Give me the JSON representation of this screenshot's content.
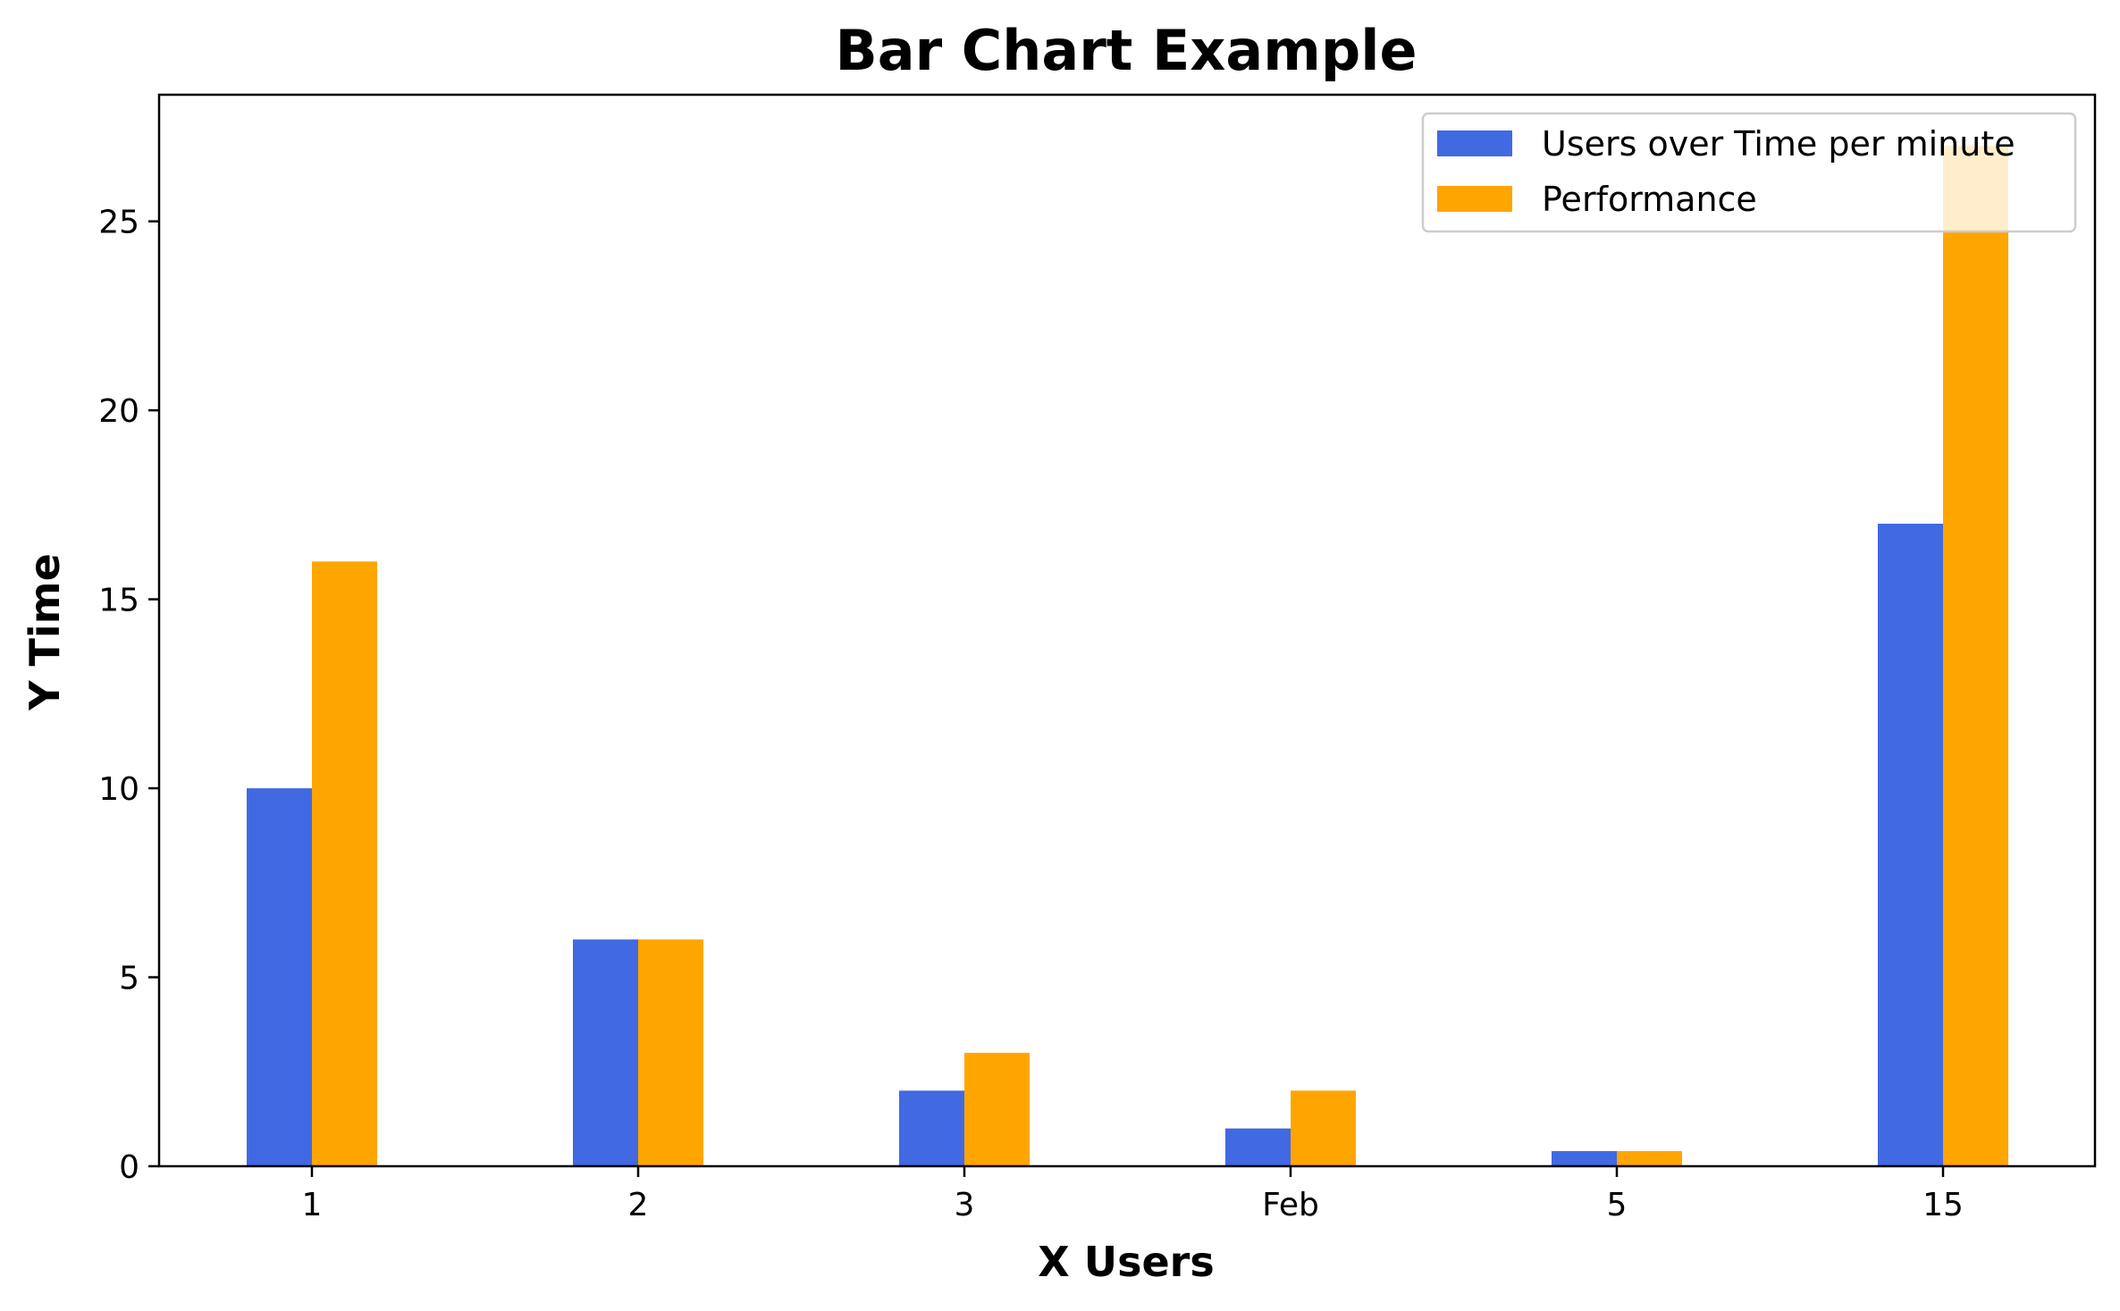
{
  "chart_data": {
    "type": "bar",
    "title": "Bar Chart Example",
    "xlabel": "X Users",
    "ylabel": "Y Time",
    "categories": [
      "1",
      "2",
      "3",
      "Feb",
      "5",
      "15"
    ],
    "series": [
      {
        "name": "Users over Time per minute",
        "values": [
          10,
          6,
          2,
          1,
          0.4,
          17
        ],
        "color": "#4169E1"
      },
      {
        "name": "Performance",
        "values": [
          16,
          6,
          3,
          2,
          0.4,
          27
        ],
        "color": "#FFA500"
      }
    ],
    "ylim": [
      0,
      28.35
    ],
    "yticks": [
      0,
      5,
      10,
      15,
      20,
      25
    ],
    "grid": false,
    "legend_position": "top-right"
  }
}
